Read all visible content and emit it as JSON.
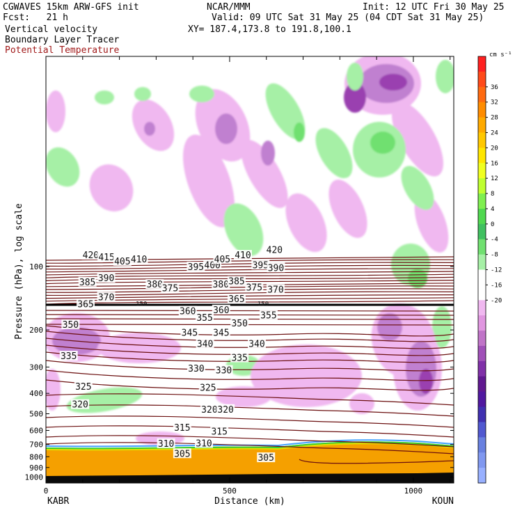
{
  "header": {
    "left_line1": "CGWAVES 15km ARW-GFS init",
    "left_line2": "Fcst:   21 h",
    "left_line3": "Vertical velocity",
    "left_line4": "Boundary Layer Tracer",
    "left_line5": "Potential Temperature",
    "center_line1": "NCAR/MMM",
    "init": "Init: 12 UTC Fri 30 May 25",
    "valid": "Valid: 09 UTC Sat 31 May 25 (04 CDT Sat 31 May 25)",
    "xy": "XY= 187.4,173.8 to 191.8,100.1"
  },
  "colors": {
    "theta_line": "#6b0f0f",
    "bl_orange": "#f5a000",
    "ground": "#0a0a0a",
    "pos_light": "#a6f0a6",
    "pos_mid": "#6fe06f",
    "neg_light": "#f0b8f0",
    "neg_mid": "#c080d0",
    "neg_dark": "#9a40b0"
  },
  "chart_data": {
    "type": "contour",
    "xlabel": "Distance (km)",
    "ylabel": "Pressure (hPa), log scale",
    "x_ticks": [
      0,
      500,
      1000
    ],
    "x_range": [
      0,
      1110
    ],
    "y_ticks": [
      100,
      200,
      300,
      400,
      500,
      600,
      700,
      800,
      900,
      1000
    ],
    "y_scale": "log",
    "x_endpoint_labels": [
      "KABR",
      "KOUN"
    ],
    "colorbar": {
      "unit": "cm s⁻¹",
      "tick_labels": [
        "36",
        "32",
        "28",
        "24",
        "20",
        "16",
        "12",
        "8",
        "4",
        "0",
        "-4",
        "-8",
        "-12",
        "-16",
        "-20"
      ],
      "colors": [
        "#ff2020",
        "#ff4a1a",
        "#ff6a10",
        "#ff8c00",
        "#ffaa00",
        "#ffc800",
        "#ffe600",
        "#f0ff20",
        "#bfff30",
        "#7fef50",
        "#50d850",
        "#40c060",
        "#70e070",
        "#a6f0a6",
        "#ffffff",
        "#ffffff",
        "#f0b8f0",
        "#e096e0",
        "#c074c8",
        "#a050b8",
        "#8030a8",
        "#601890",
        "#5018a0",
        "#4030b0",
        "#5058d0",
        "#6880e0",
        "#8098f0",
        "#98b0ff"
      ]
    },
    "theta_labels": [
      {
        "v": "420",
        "x": 122,
        "p": 88
      },
      {
        "v": "415",
        "x": 165,
        "p": 90
      },
      {
        "v": "405",
        "x": 208,
        "p": 94
      },
      {
        "v": "410",
        "x": 253,
        "p": 92
      },
      {
        "v": "395",
        "x": 408,
        "p": 100
      },
      {
        "v": "400",
        "x": 453,
        "p": 98
      },
      {
        "v": "405",
        "x": 480,
        "p": 92
      },
      {
        "v": "410",
        "x": 536,
        "p": 88
      },
      {
        "v": "420",
        "x": 622,
        "p": 83
      },
      {
        "v": "395",
        "x": 584,
        "p": 98
      },
      {
        "v": "390",
        "x": 626,
        "p": 101
      },
      {
        "v": "385",
        "x": 113,
        "p": 118
      },
      {
        "v": "390",
        "x": 164,
        "p": 113
      },
      {
        "v": "380",
        "x": 296,
        "p": 121
      },
      {
        "v": "375",
        "x": 338,
        "p": 126
      },
      {
        "v": "380",
        "x": 476,
        "p": 121
      },
      {
        "v": "385",
        "x": 519,
        "p": 117
      },
      {
        "v": "375",
        "x": 567,
        "p": 125
      },
      {
        "v": "370",
        "x": 625,
        "p": 128
      },
      {
        "v": "370",
        "x": 164,
        "p": 139
      },
      {
        "v": "365",
        "x": 108,
        "p": 150
      },
      {
        "v": "365",
        "x": 519,
        "p": 142
      },
      {
        "v": "360",
        "x": 386,
        "p": 162
      },
      {
        "v": "360",
        "x": 477,
        "p": 160
      },
      {
        "v": "355",
        "x": 432,
        "p": 174
      },
      {
        "v": "355",
        "x": 606,
        "p": 170
      },
      {
        "v": "350",
        "x": 67,
        "p": 188
      },
      {
        "v": "350",
        "x": 527,
        "p": 185
      },
      {
        "v": "345",
        "x": 391,
        "p": 205
      },
      {
        "v": "345",
        "x": 477,
        "p": 205
      },
      {
        "v": "340",
        "x": 433,
        "p": 232
      },
      {
        "v": "340",
        "x": 574,
        "p": 232
      },
      {
        "v": "335",
        "x": 62,
        "p": 265
      },
      {
        "v": "335",
        "x": 527,
        "p": 270
      },
      {
        "v": "330",
        "x": 409,
        "p": 304
      },
      {
        "v": "330",
        "x": 484,
        "p": 310
      },
      {
        "v": "325",
        "x": 102,
        "p": 370
      },
      {
        "v": "325",
        "x": 441,
        "p": 375
      },
      {
        "v": "320",
        "x": 93,
        "p": 450
      },
      {
        "v": "320",
        "x": 445,
        "p": 475
      },
      {
        "v": "320",
        "x": 489,
        "p": 475
      },
      {
        "v": "315",
        "x": 371,
        "p": 580
      },
      {
        "v": "315",
        "x": 472,
        "p": 605
      },
      {
        "v": "310",
        "x": 327,
        "p": 690
      },
      {
        "v": "310",
        "x": 430,
        "p": 688
      },
      {
        "v": "305",
        "x": 371,
        "p": 770
      },
      {
        "v": "305",
        "x": 599,
        "p": 805
      }
    ],
    "tropopause_labels": [
      {
        "v": "150",
        "x": 260,
        "p": 150
      },
      {
        "v": "150",
        "x": 591,
        "p": 150
      }
    ]
  }
}
